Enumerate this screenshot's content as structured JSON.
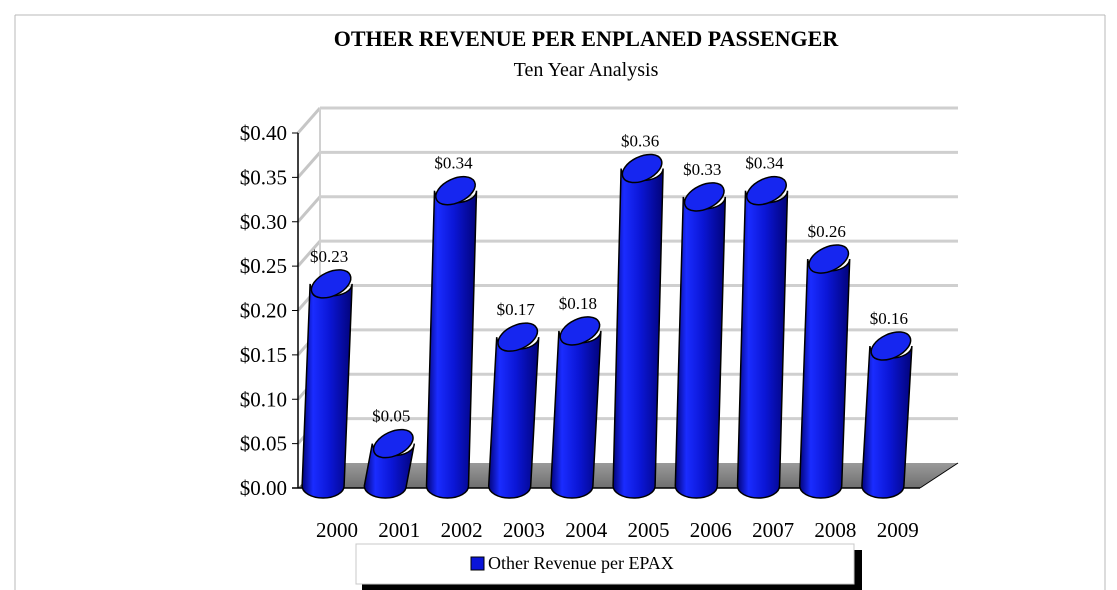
{
  "chart_data": {
    "type": "bar",
    "title": "OTHER REVENUE PER ENPLANED PASSENGER",
    "subtitle": "Ten Year Analysis",
    "xlabel": "",
    "ylabel": "",
    "categories": [
      "2000",
      "2001",
      "2002",
      "2003",
      "2004",
      "2005",
      "2006",
      "2007",
      "2008",
      "2009"
    ],
    "series": [
      {
        "name": "Other Revenue per EPAX",
        "values": [
          0.23,
          0.05,
          0.335,
          0.17,
          0.177,
          0.36,
          0.328,
          0.335,
          0.258,
          0.16
        ],
        "labels": [
          "$0.23",
          "$0.05",
          "$0.34",
          "$0.17",
          "$0.18",
          "$0.36",
          "$0.33",
          "$0.34",
          "$0.26",
          "$0.16"
        ],
        "color": "#0a14d8"
      }
    ],
    "yticks": [
      "$0.00",
      "$0.05",
      "$0.10",
      "$0.15",
      "$0.20",
      "$0.25",
      "$0.30",
      "$0.35",
      "$0.40"
    ],
    "ylim": [
      0,
      0.4
    ],
    "grid": true,
    "legend_position": "bottom",
    "style": "3d-cylinder"
  }
}
